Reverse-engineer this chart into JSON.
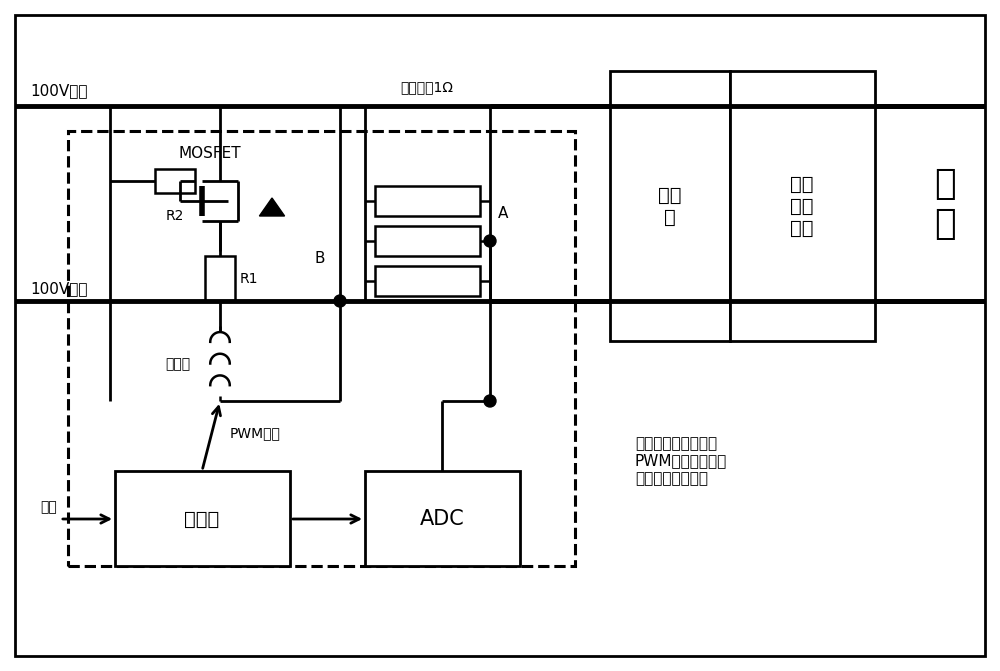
{
  "fig_width": 10.0,
  "fig_height": 6.71,
  "bg_color": "#ffffff",
  "line_color": "#000000",
  "labels": {
    "bus100v": "100V母线",
    "return100v": "100V回线",
    "mosfet": "MOSFET",
    "sample_r": "采样电阻1Ω",
    "filter": "滤波\n器",
    "voltage_conv": "电压\n变换\n装置",
    "load": "负\n载",
    "controller": "控制器",
    "adc": "ADC",
    "inductor": "电感器",
    "pwm_out": "PWM输出",
    "weak_power": "弱电",
    "R1": "R1",
    "R2": "R2",
    "point_A": "A",
    "point_B": "B",
    "annotation": "虚线框范围内为新型\nPWM全过程浪涌电\n流抑制通用化装置"
  }
}
